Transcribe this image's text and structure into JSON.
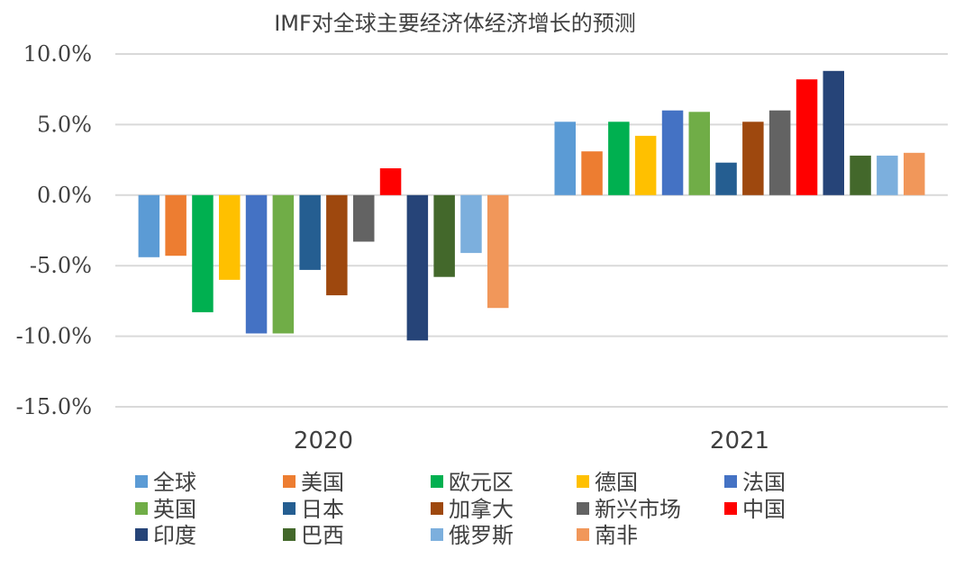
{
  "chart_data": {
    "type": "bar",
    "title": "IMF对全球主要经济体经济增长的预测",
    "xlabel": "",
    "ylabel": "",
    "ylim": [
      -15,
      10
    ],
    "yticks": [
      10,
      5,
      0,
      -5,
      -10,
      -15
    ],
    "ytick_labels": [
      "10.0%",
      "5.0%",
      "0.0%",
      "-5.0%",
      "-10.0%",
      "-15.0%"
    ],
    "grid": true,
    "legend_position": "bottom",
    "categories": [
      "2020",
      "2021"
    ],
    "series": [
      {
        "name": "全球",
        "color": "#5b9bd5",
        "values": [
          -4.4,
          5.2
        ]
      },
      {
        "name": "美国",
        "color": "#ed7d31",
        "values": [
          -4.3,
          3.1
        ]
      },
      {
        "name": "欧元区",
        "color": "#00b050",
        "values": [
          -8.3,
          5.2
        ]
      },
      {
        "name": "德国",
        "color": "#ffc000",
        "values": [
          -6.0,
          4.2
        ]
      },
      {
        "name": "法国",
        "color": "#4472c4",
        "values": [
          -9.8,
          6.0
        ]
      },
      {
        "name": "英国",
        "color": "#70ad47",
        "values": [
          -9.8,
          5.9
        ]
      },
      {
        "name": "日本",
        "color": "#255e91",
        "values": [
          -5.3,
          2.3
        ]
      },
      {
        "name": "加拿大",
        "color": "#9e480e",
        "values": [
          -7.1,
          5.2
        ]
      },
      {
        "name": "新兴市场",
        "color": "#636363",
        "values": [
          -3.3,
          6.0
        ]
      },
      {
        "name": "中国",
        "color": "#ff0000",
        "values": [
          1.9,
          8.2
        ]
      },
      {
        "name": "印度",
        "color": "#264478",
        "values": [
          -10.3,
          8.8
        ]
      },
      {
        "name": "巴西",
        "color": "#43682b",
        "values": [
          -5.8,
          2.8
        ]
      },
      {
        "name": "俄罗斯",
        "color": "#7cafdd",
        "values": [
          -4.1,
          2.8
        ]
      },
      {
        "name": "南非",
        "color": "#f1975a",
        "values": [
          -8.0,
          3.0
        ]
      }
    ]
  }
}
